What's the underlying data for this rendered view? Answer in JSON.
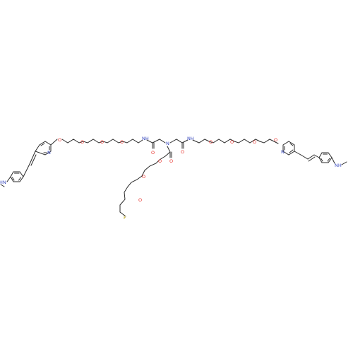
{
  "molecule": {
    "bond_color": "#2a2a2a",
    "atom_colors": {
      "O": "#e8302a",
      "N": "#3b4cc0",
      "F": "#b8a000"
    },
    "atom_labels": {
      "O": "O",
      "N": "N",
      "NH": "NH",
      "HN": "HN",
      "F": "F"
    }
  }
}
